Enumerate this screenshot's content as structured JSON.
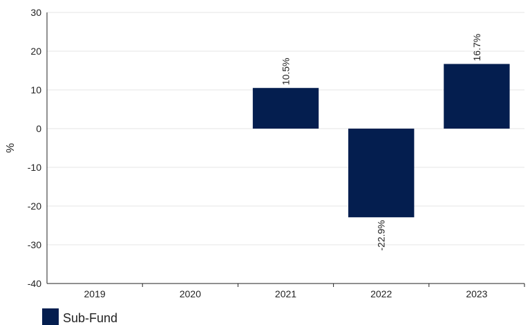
{
  "chart_data": {
    "type": "bar",
    "categories": [
      "2019",
      "2020",
      "2021",
      "2022",
      "2023"
    ],
    "series": [
      {
        "name": "Sub-Fund",
        "values": [
          null,
          null,
          10.5,
          -22.9,
          16.7
        ],
        "data_labels": [
          "",
          "",
          "10.5%",
          "-22.9%",
          "16.7%"
        ],
        "color": "#041e4f"
      }
    ],
    "ylabel": "%",
    "xlabel": "",
    "ylim": [
      -40,
      30
    ],
    "yticks": [
      30,
      20,
      10,
      0,
      -10,
      -20,
      -30,
      -40
    ],
    "grid": true,
    "legend_position": "bottom-left"
  },
  "colors": {
    "bar": "#041e4f",
    "grid": "#e6e6e6",
    "axis": "#222222"
  }
}
